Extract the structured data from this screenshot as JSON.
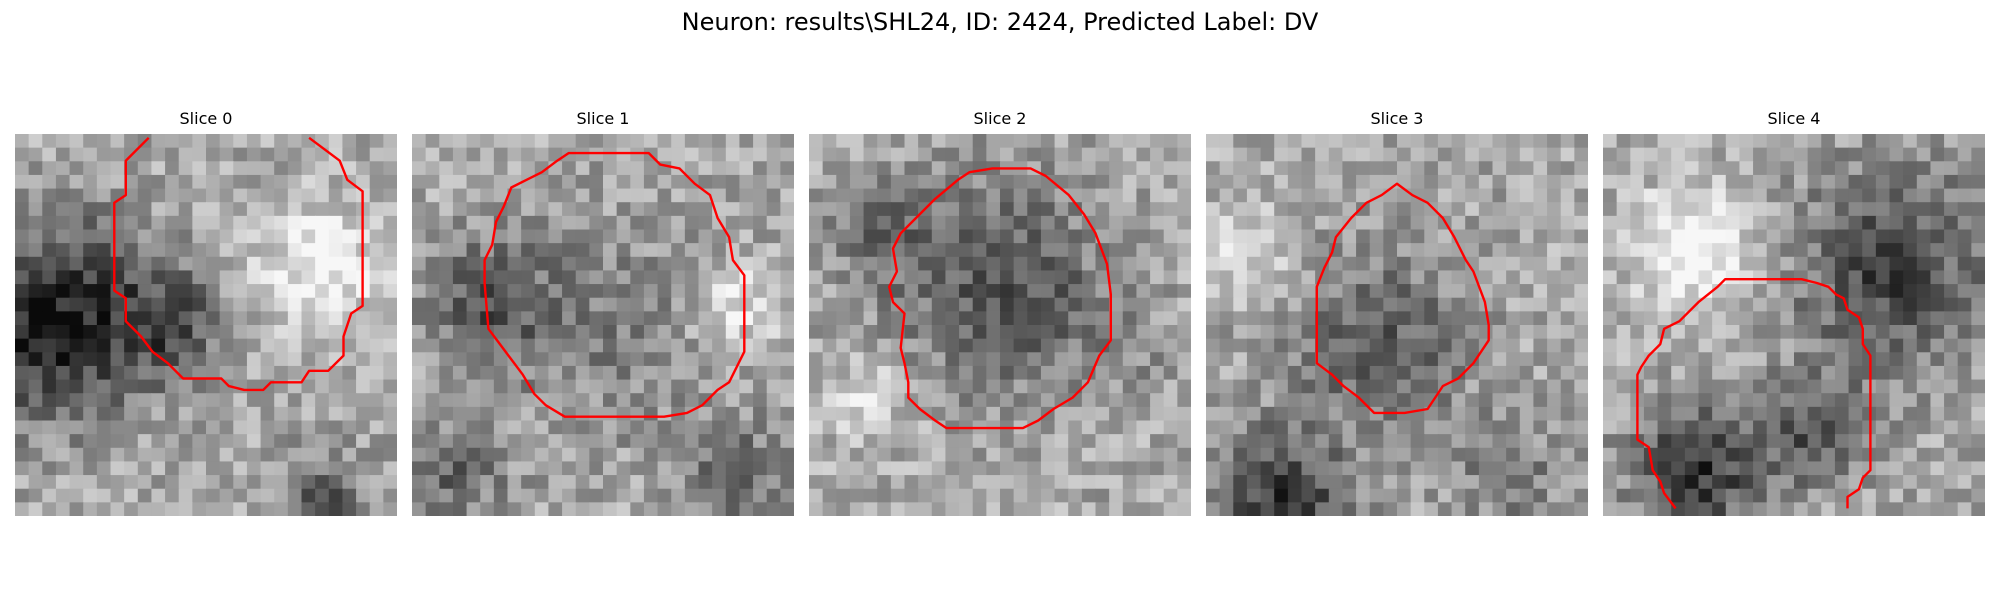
{
  "figure": {
    "title": "Neuron: results\\SHL24, ID: 2424, Predicted Label: DV"
  },
  "colors": {
    "contour": "#ff0000",
    "background": "#ffffff",
    "colormap": "gray"
  },
  "slices": [
    {
      "title": "Slice 0"
    },
    {
      "title": "Slice 1"
    },
    {
      "title": "Slice 2"
    },
    {
      "title": "Slice 3"
    },
    {
      "title": "Slice 4"
    }
  ]
}
